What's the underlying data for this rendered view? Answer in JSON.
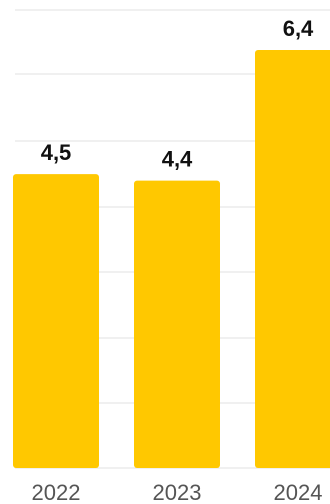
{
  "chart_data": {
    "type": "bar",
    "categories": [
      "2022",
      "2023",
      "2024"
    ],
    "values": [
      4.5,
      4.4,
      6.4
    ],
    "value_labels": [
      "4,5",
      "4,4",
      "6,4"
    ],
    "ylim": [
      0,
      6.4
    ],
    "grid": true,
    "bar_color": "#FFC800",
    "grid_color": "#ECECEC"
  }
}
